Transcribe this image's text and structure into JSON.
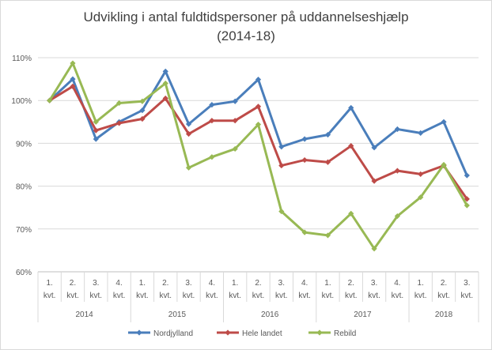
{
  "chart_data": {
    "type": "line",
    "title": "Udvikling i antal fuldtidspersoner på uddannelseshjælp",
    "subtitle": "(2014-18)",
    "xlabel": "",
    "ylabel": "",
    "ylim": [
      0.6,
      1.1
    ],
    "yticks": [
      "60%",
      "70%",
      "80%",
      "90%",
      "100%",
      "110%"
    ],
    "categories": [
      "2014 1. kvt.",
      "2014 2. kvt.",
      "2014 3. kvt.",
      "2014 4. kvt.",
      "2015 1. kvt.",
      "2015 2. kvt.",
      "2015 3. kvt.",
      "2015 4. kvt.",
      "2016 1. kvt.",
      "2016 2. kvt.",
      "2016 3. kvt.",
      "2016 4. kvt.",
      "2017 1. kvt.",
      "2017 2. kvt.",
      "2017 3. kvt.",
      "2017 4. kvt.",
      "2018 1. kvt.",
      "2018 2. kvt.",
      "2018 3. kvt."
    ],
    "quarter_labels": [
      "1.",
      "2.",
      "3.",
      "4.",
      "1.",
      "2.",
      "3.",
      "4.",
      "1.",
      "2.",
      "3.",
      "4.",
      "1.",
      "2.",
      "3.",
      "4.",
      "1.",
      "2.",
      "3."
    ],
    "quarter_suffix": "kvt.",
    "year_groups": [
      {
        "label": "2014",
        "count": 4
      },
      {
        "label": "2015",
        "count": 4
      },
      {
        "label": "2016",
        "count": 4
      },
      {
        "label": "2017",
        "count": 4
      },
      {
        "label": "2018",
        "count": 3
      }
    ],
    "legend_position": "bottom",
    "grid": true,
    "series": [
      {
        "name": "Nordjylland",
        "color": "#4a7ebb",
        "values": [
          1.0,
          1.05,
          0.91,
          0.95,
          0.977,
          1.068,
          0.945,
          0.99,
          0.998,
          1.049,
          0.892,
          0.91,
          0.92,
          0.983,
          0.89,
          0.933,
          0.924,
          0.95,
          0.825
        ]
      },
      {
        "name": "Hele landet",
        "color": "#be4b48",
        "values": [
          1.0,
          1.033,
          0.93,
          0.947,
          0.957,
          1.005,
          0.922,
          0.953,
          0.953,
          0.986,
          0.848,
          0.861,
          0.856,
          0.894,
          0.812,
          0.836,
          0.828,
          0.848,
          0.77
        ]
      },
      {
        "name": "Rebild",
        "color": "#98b954",
        "values": [
          1.0,
          1.087,
          0.95,
          0.994,
          0.998,
          1.04,
          0.843,
          0.868,
          0.887,
          0.944,
          0.741,
          0.692,
          0.685,
          0.736,
          0.654,
          0.73,
          0.774,
          0.85,
          0.755
        ]
      }
    ]
  }
}
